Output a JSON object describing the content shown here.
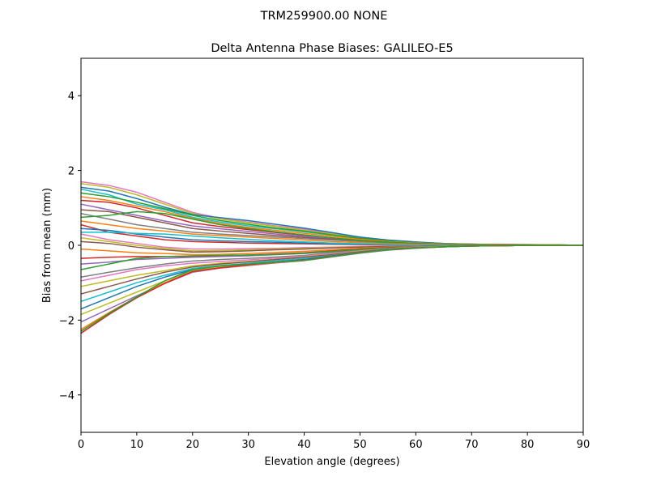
{
  "figure": {
    "suptitle": "TRM259900.00    NONE"
  },
  "chart_data": {
    "type": "line",
    "title": "Delta Antenna Phase Biases: GALILEO-E5",
    "xlabel": "Elevation angle (degrees)",
    "ylabel": "Bias from mean (mm)",
    "xlim": [
      0,
      90
    ],
    "ylim": [
      -5,
      5
    ],
    "xticks": [
      0,
      10,
      20,
      30,
      40,
      50,
      60,
      70,
      80,
      90
    ],
    "yticks": [
      -4,
      -2,
      0,
      2,
      4
    ],
    "grid": false,
    "legend": "none",
    "x": [
      0,
      5,
      10,
      15,
      20,
      25,
      30,
      35,
      40,
      45,
      50,
      55,
      60,
      65,
      70,
      75,
      80,
      85,
      90
    ],
    "series": [
      {
        "color": "#e377c2",
        "values": [
          1.7,
          1.6,
          1.42,
          1.15,
          0.88,
          0.72,
          0.62,
          0.52,
          0.43,
          0.32,
          0.22,
          0.14,
          0.09,
          0.05,
          0.03,
          0.03,
          0.02,
          0.01,
          0.0
        ]
      },
      {
        "color": "#bcbd22",
        "values": [
          1.65,
          1.55,
          1.35,
          1.1,
          0.85,
          0.7,
          0.6,
          0.5,
          0.4,
          0.3,
          0.2,
          0.13,
          0.08,
          0.05,
          0.03,
          0.02,
          0.02,
          0.01,
          0.0
        ]
      },
      {
        "color": "#1f77b4",
        "values": [
          1.55,
          1.45,
          1.25,
          1.02,
          0.82,
          0.74,
          0.66,
          0.56,
          0.46,
          0.34,
          0.22,
          0.14,
          0.09,
          0.05,
          0.03,
          0.02,
          0.01,
          0.01,
          0.0
        ]
      },
      {
        "color": "#17becf",
        "values": [
          1.5,
          1.35,
          1.1,
          0.95,
          0.75,
          0.62,
          0.52,
          0.44,
          0.36,
          0.27,
          0.18,
          0.12,
          0.07,
          0.04,
          0.03,
          0.02,
          0.01,
          0.01,
          0.0
        ]
      },
      {
        "color": "#2ca02c",
        "values": [
          1.4,
          1.3,
          1.15,
          0.98,
          0.8,
          0.66,
          0.56,
          0.46,
          0.38,
          0.28,
          0.19,
          0.12,
          0.07,
          0.04,
          0.03,
          0.02,
          0.01,
          0.01,
          0.0
        ]
      },
      {
        "color": "#ff7f0e",
        "values": [
          1.3,
          1.2,
          1.05,
          0.9,
          0.72,
          0.58,
          0.48,
          0.4,
          0.32,
          0.24,
          0.16,
          0.1,
          0.06,
          0.04,
          0.02,
          0.02,
          0.01,
          0.01,
          0.0
        ]
      },
      {
        "color": "#d62728",
        "values": [
          1.2,
          1.15,
          1.0,
          0.8,
          0.6,
          0.5,
          0.42,
          0.34,
          0.27,
          0.2,
          0.13,
          0.08,
          0.05,
          0.03,
          0.02,
          0.01,
          0.01,
          0.0,
          0.0
        ]
      },
      {
        "color": "#9467bd",
        "values": [
          1.1,
          0.95,
          0.8,
          0.65,
          0.52,
          0.44,
          0.37,
          0.3,
          0.24,
          0.18,
          0.12,
          0.08,
          0.05,
          0.03,
          0.02,
          0.01,
          0.01,
          0.0,
          0.0
        ]
      },
      {
        "color": "#8c564b",
        "values": [
          0.95,
          0.9,
          0.75,
          0.6,
          0.45,
          0.38,
          0.32,
          0.26,
          0.21,
          0.16,
          0.11,
          0.07,
          0.04,
          0.03,
          0.02,
          0.01,
          0.01,
          0.0,
          0.0
        ]
      },
      {
        "color": "#7f7f7f",
        "values": [
          0.85,
          0.7,
          0.55,
          0.45,
          0.35,
          0.3,
          0.26,
          0.22,
          0.18,
          0.14,
          0.1,
          0.06,
          0.04,
          0.02,
          0.01,
          0.01,
          0.0,
          0.0,
          0.0
        ]
      },
      {
        "color": "#2ca02c",
        "values": [
          0.75,
          0.8,
          0.9,
          0.85,
          0.7,
          0.55,
          0.45,
          0.36,
          0.28,
          0.2,
          0.13,
          0.08,
          0.05,
          0.03,
          0.02,
          0.01,
          0.01,
          0.0,
          0.0
        ]
      },
      {
        "color": "#ff7f0e",
        "values": [
          0.65,
          0.55,
          0.45,
          0.38,
          0.3,
          0.26,
          0.22,
          0.18,
          0.14,
          0.1,
          0.07,
          0.04,
          0.03,
          0.02,
          0.01,
          0.01,
          0.0,
          0.0,
          0.0
        ]
      },
      {
        "color": "#d62728",
        "values": [
          0.55,
          0.35,
          0.25,
          0.15,
          0.1,
          0.08,
          0.06,
          0.05,
          0.04,
          0.03,
          0.02,
          0.01,
          0.01,
          0.0,
          0.0,
          0.0,
          0.0,
          0.0,
          0.0
        ]
      },
      {
        "color": "#1f77b4",
        "values": [
          0.45,
          0.4,
          0.3,
          0.22,
          0.15,
          0.12,
          0.1,
          0.08,
          0.06,
          0.04,
          0.03,
          0.02,
          0.01,
          0.01,
          0.0,
          0.0,
          0.0,
          0.0,
          0.0
        ]
      },
      {
        "color": "#17becf",
        "values": [
          0.35,
          0.35,
          0.32,
          0.3,
          0.25,
          0.2,
          0.16,
          0.12,
          0.09,
          0.06,
          0.04,
          0.02,
          0.01,
          0.01,
          0.0,
          0.0,
          0.0,
          0.0,
          0.0
        ]
      },
      {
        "color": "#e377c2",
        "values": [
          0.3,
          0.15,
          0.05,
          -0.05,
          -0.1,
          -0.1,
          -0.09,
          -0.08,
          -0.06,
          -0.05,
          -0.03,
          -0.02,
          -0.01,
          -0.01,
          0.0,
          0.0,
          0.0,
          0.0,
          0.0
        ]
      },
      {
        "color": "#bcbd22",
        "values": [
          0.2,
          0.1,
          0.0,
          -0.08,
          -0.15,
          -0.14,
          -0.12,
          -0.1,
          -0.08,
          -0.06,
          -0.04,
          -0.03,
          -0.02,
          -0.01,
          0.0,
          0.0,
          0.0,
          0.0,
          0.0
        ]
      },
      {
        "color": "#8c564b",
        "values": [
          0.1,
          0.05,
          -0.05,
          -0.12,
          -0.18,
          -0.17,
          -0.15,
          -0.12,
          -0.1,
          -0.07,
          -0.05,
          -0.03,
          -0.02,
          -0.01,
          0.0,
          0.0,
          0.0,
          0.0,
          0.0
        ]
      },
      {
        "color": "#ff7f0e",
        "values": [
          -0.1,
          -0.15,
          -0.2,
          -0.22,
          -0.25,
          -0.24,
          -0.22,
          -0.19,
          -0.16,
          -0.12,
          -0.08,
          -0.05,
          -0.03,
          -0.02,
          -0.01,
          0.0,
          0.0,
          0.0,
          0.0
        ]
      },
      {
        "color": "#d62728",
        "values": [
          -0.35,
          -0.32,
          -0.3,
          -0.3,
          -0.3,
          -0.28,
          -0.26,
          -0.23,
          -0.2,
          -0.15,
          -0.1,
          -0.06,
          -0.04,
          -0.02,
          -0.01,
          0.0,
          0.0,
          0.0,
          0.0
        ]
      },
      {
        "color": "#9467bd",
        "values": [
          -0.5,
          -0.45,
          -0.38,
          -0.35,
          -0.32,
          -0.3,
          -0.28,
          -0.25,
          -0.22,
          -0.17,
          -0.12,
          -0.07,
          -0.04,
          -0.02,
          -0.01,
          -0.01,
          0.0,
          0.0,
          0.0
        ]
      },
      {
        "color": "#2ca02c",
        "values": [
          -0.65,
          -0.5,
          -0.35,
          -0.3,
          -0.28,
          -0.27,
          -0.26,
          -0.24,
          -0.21,
          -0.16,
          -0.11,
          -0.07,
          -0.04,
          -0.02,
          -0.01,
          -0.01,
          0.0,
          0.0,
          0.0
        ]
      },
      {
        "color": "#7f7f7f",
        "values": [
          -0.85,
          -0.72,
          -0.6,
          -0.5,
          -0.42,
          -0.38,
          -0.35,
          -0.31,
          -0.27,
          -0.2,
          -0.14,
          -0.09,
          -0.05,
          -0.03,
          -0.02,
          -0.01,
          0.0,
          0.0,
          0.0
        ]
      },
      {
        "color": "#e377c2",
        "values": [
          -0.95,
          -0.8,
          -0.65,
          -0.55,
          -0.48,
          -0.43,
          -0.39,
          -0.34,
          -0.29,
          -0.22,
          -0.15,
          -0.09,
          -0.05,
          -0.03,
          -0.02,
          -0.01,
          0.0,
          0.0,
          0.0
        ]
      },
      {
        "color": "#bcbd22",
        "values": [
          -1.1,
          -0.95,
          -0.8,
          -0.68,
          -0.55,
          -0.48,
          -0.43,
          -0.37,
          -0.31,
          -0.24,
          -0.16,
          -0.1,
          -0.06,
          -0.03,
          -0.02,
          -0.01,
          0.0,
          0.0,
          0.0
        ]
      },
      {
        "color": "#8c564b",
        "values": [
          -1.3,
          -1.1,
          -0.9,
          -0.72,
          -0.58,
          -0.5,
          -0.44,
          -0.38,
          -0.32,
          -0.25,
          -0.17,
          -0.1,
          -0.06,
          -0.04,
          -0.02,
          -0.01,
          0.0,
          0.0,
          0.0
        ]
      },
      {
        "color": "#17becf",
        "values": [
          -1.5,
          -1.25,
          -1.0,
          -0.8,
          -0.62,
          -0.54,
          -0.48,
          -0.41,
          -0.35,
          -0.27,
          -0.18,
          -0.11,
          -0.07,
          -0.04,
          -0.02,
          -0.01,
          0.0,
          0.0,
          0.0
        ]
      },
      {
        "color": "#1f77b4",
        "values": [
          -1.7,
          -1.4,
          -1.1,
          -0.85,
          -0.65,
          -0.56,
          -0.5,
          -0.44,
          -0.38,
          -0.28,
          -0.19,
          -0.12,
          -0.07,
          -0.04,
          -0.02,
          -0.01,
          0.0,
          0.0,
          0.0
        ]
      },
      {
        "color": "#bcbd22",
        "values": [
          -1.85,
          -1.55,
          -1.25,
          -0.95,
          -0.68,
          -0.58,
          -0.52,
          -0.46,
          -0.4,
          -0.3,
          -0.2,
          -0.12,
          -0.07,
          -0.04,
          -0.02,
          -0.01,
          0.0,
          0.0,
          0.0
        ]
      },
      {
        "color": "#9467bd",
        "values": [
          -2.05,
          -1.7,
          -1.35,
          -1.02,
          -0.72,
          -0.61,
          -0.54,
          -0.47,
          -0.41,
          -0.31,
          -0.21,
          -0.13,
          -0.08,
          -0.04,
          -0.02,
          -0.01,
          0.0,
          0.0,
          0.0
        ]
      },
      {
        "color": "#ff7f0e",
        "values": [
          -2.25,
          -1.8,
          -1.38,
          -1.0,
          -0.7,
          -0.6,
          -0.53,
          -0.46,
          -0.4,
          -0.3,
          -0.2,
          -0.12,
          -0.07,
          -0.04,
          -0.02,
          -0.01,
          0.0,
          0.0,
          0.0
        ]
      },
      {
        "color": "#d62728",
        "values": [
          -2.35,
          -1.85,
          -1.4,
          -1.02,
          -0.7,
          -0.6,
          -0.52,
          -0.45,
          -0.39,
          -0.29,
          -0.19,
          -0.12,
          -0.07,
          -0.04,
          -0.02,
          -0.01,
          0.0,
          0.0,
          0.0
        ]
      },
      {
        "color": "#2ca02c",
        "values": [
          -2.3,
          -1.82,
          -1.38,
          -0.95,
          -0.65,
          -0.55,
          -0.5,
          -0.45,
          -0.4,
          -0.3,
          -0.2,
          -0.12,
          -0.07,
          -0.04,
          -0.02,
          -0.01,
          0.0,
          0.0,
          0.0
        ]
      }
    ]
  }
}
